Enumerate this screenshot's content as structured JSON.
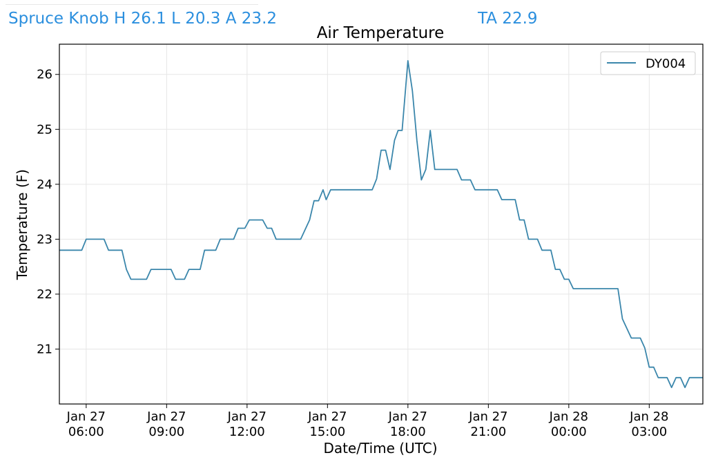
{
  "header": {
    "station_summary": "Spruce Knob H 26.1 L 20.3 A 23.2",
    "ta": "TA 22.9"
  },
  "colors": {
    "header_text": "#2b8fde",
    "series_line": "#3a86ab",
    "grid": "#e6e6e6"
  },
  "chart_data": {
    "type": "line",
    "title": "Air Temperature",
    "xlabel": "Date/Time (UTC)",
    "ylabel": "Temperature (F)",
    "ylim": [
      20.0,
      26.55
    ],
    "yticks": [
      21,
      22,
      23,
      24,
      25,
      26
    ],
    "xlim": [
      "2026-01-27 05:00",
      "2026-01-28 05:00"
    ],
    "xticks": [
      {
        "t": "2026-01-27 06:00",
        "line1": "Jan 27",
        "line2": "06:00"
      },
      {
        "t": "2026-01-27 09:00",
        "line1": "Jan 27",
        "line2": "09:00"
      },
      {
        "t": "2026-01-27 12:00",
        "line1": "Jan 27",
        "line2": "12:00"
      },
      {
        "t": "2026-01-27 15:00",
        "line1": "Jan 27",
        "line2": "15:00"
      },
      {
        "t": "2026-01-27 18:00",
        "line1": "Jan 27",
        "line2": "18:00"
      },
      {
        "t": "2026-01-27 21:00",
        "line1": "Jan 27",
        "line2": "21:00"
      },
      {
        "t": "2026-01-28 00:00",
        "line1": "Jan 28",
        "line2": "00:00"
      },
      {
        "t": "2026-01-28 03:00",
        "line1": "Jan 28",
        "line2": "03:00"
      }
    ],
    "grid": true,
    "legend_position": "top-right",
    "series": [
      {
        "name": "DY004",
        "points": [
          [
            "2026-01-27 05:00",
            22.8
          ],
          [
            "2026-01-27 05:50",
            22.8
          ],
          [
            "2026-01-27 06:00",
            23.0
          ],
          [
            "2026-01-27 06:40",
            23.0
          ],
          [
            "2026-01-27 06:50",
            22.8
          ],
          [
            "2026-01-27 07:20",
            22.8
          ],
          [
            "2026-01-27 07:30",
            22.45
          ],
          [
            "2026-01-27 07:40",
            22.27
          ],
          [
            "2026-01-27 08:15",
            22.27
          ],
          [
            "2026-01-27 08:25",
            22.45
          ],
          [
            "2026-01-27 09:10",
            22.45
          ],
          [
            "2026-01-27 09:20",
            22.27
          ],
          [
            "2026-01-27 09:40",
            22.27
          ],
          [
            "2026-01-27 09:50",
            22.45
          ],
          [
            "2026-01-27 10:15",
            22.45
          ],
          [
            "2026-01-27 10:25",
            22.8
          ],
          [
            "2026-01-27 10:50",
            22.8
          ],
          [
            "2026-01-27 11:00",
            23.0
          ],
          [
            "2026-01-27 11:30",
            23.0
          ],
          [
            "2026-01-27 11:40",
            23.2
          ],
          [
            "2026-01-27 11:55",
            23.2
          ],
          [
            "2026-01-27 12:05",
            23.35
          ],
          [
            "2026-01-27 12:35",
            23.35
          ],
          [
            "2026-01-27 12:45",
            23.2
          ],
          [
            "2026-01-27 12:55",
            23.2
          ],
          [
            "2026-01-27 13:05",
            23.0
          ],
          [
            "2026-01-27 14:00",
            23.0
          ],
          [
            "2026-01-27 14:20",
            23.35
          ],
          [
            "2026-01-27 14:30",
            23.7
          ],
          [
            "2026-01-27 14:40",
            23.7
          ],
          [
            "2026-01-27 14:50",
            23.9
          ],
          [
            "2026-01-27 14:57",
            23.72
          ],
          [
            "2026-01-27 15:07",
            23.9
          ],
          [
            "2026-01-27 16:40",
            23.9
          ],
          [
            "2026-01-27 16:50",
            24.1
          ],
          [
            "2026-01-27 17:00",
            24.62
          ],
          [
            "2026-01-27 17:10",
            24.62
          ],
          [
            "2026-01-27 17:20",
            24.27
          ],
          [
            "2026-01-27 17:30",
            24.8
          ],
          [
            "2026-01-27 17:38",
            24.98
          ],
          [
            "2026-01-27 17:47",
            24.98
          ],
          [
            "2026-01-27 18:00",
            26.25
          ],
          [
            "2026-01-27 18:10",
            25.7
          ],
          [
            "2026-01-27 18:20",
            24.8
          ],
          [
            "2026-01-27 18:30",
            24.08
          ],
          [
            "2026-01-27 18:40",
            24.27
          ],
          [
            "2026-01-27 18:50",
            24.98
          ],
          [
            "2026-01-27 19:00",
            24.27
          ],
          [
            "2026-01-27 19:50",
            24.27
          ],
          [
            "2026-01-27 20:00",
            24.08
          ],
          [
            "2026-01-27 20:20",
            24.08
          ],
          [
            "2026-01-27 20:30",
            23.9
          ],
          [
            "2026-01-27 21:20",
            23.9
          ],
          [
            "2026-01-27 21:30",
            23.72
          ],
          [
            "2026-01-27 22:00",
            23.72
          ],
          [
            "2026-01-27 22:10",
            23.35
          ],
          [
            "2026-01-27 22:20",
            23.35
          ],
          [
            "2026-01-27 22:30",
            23.0
          ],
          [
            "2026-01-27 22:50",
            23.0
          ],
          [
            "2026-01-27 23:00",
            22.8
          ],
          [
            "2026-01-27 23:20",
            22.8
          ],
          [
            "2026-01-27 23:30",
            22.45
          ],
          [
            "2026-01-27 23:40",
            22.45
          ],
          [
            "2026-01-27 23:50",
            22.27
          ],
          [
            "2026-01-28 00:00",
            22.27
          ],
          [
            "2026-01-28 00:10",
            22.1
          ],
          [
            "2026-01-28 01:50",
            22.1
          ],
          [
            "2026-01-28 02:00",
            21.55
          ],
          [
            "2026-01-28 02:20",
            21.2
          ],
          [
            "2026-01-28 02:40",
            21.2
          ],
          [
            "2026-01-28 02:50",
            21.02
          ],
          [
            "2026-01-28 03:00",
            20.67
          ],
          [
            "2026-01-28 03:10",
            20.67
          ],
          [
            "2026-01-28 03:20",
            20.48
          ],
          [
            "2026-01-28 03:40",
            20.48
          ],
          [
            "2026-01-28 03:50",
            20.3
          ],
          [
            "2026-01-28 04:00",
            20.48
          ],
          [
            "2026-01-28 04:10",
            20.48
          ],
          [
            "2026-01-28 04:20",
            20.3
          ],
          [
            "2026-01-28 04:30",
            20.48
          ],
          [
            "2026-01-28 05:00",
            20.48
          ]
        ]
      }
    ]
  }
}
